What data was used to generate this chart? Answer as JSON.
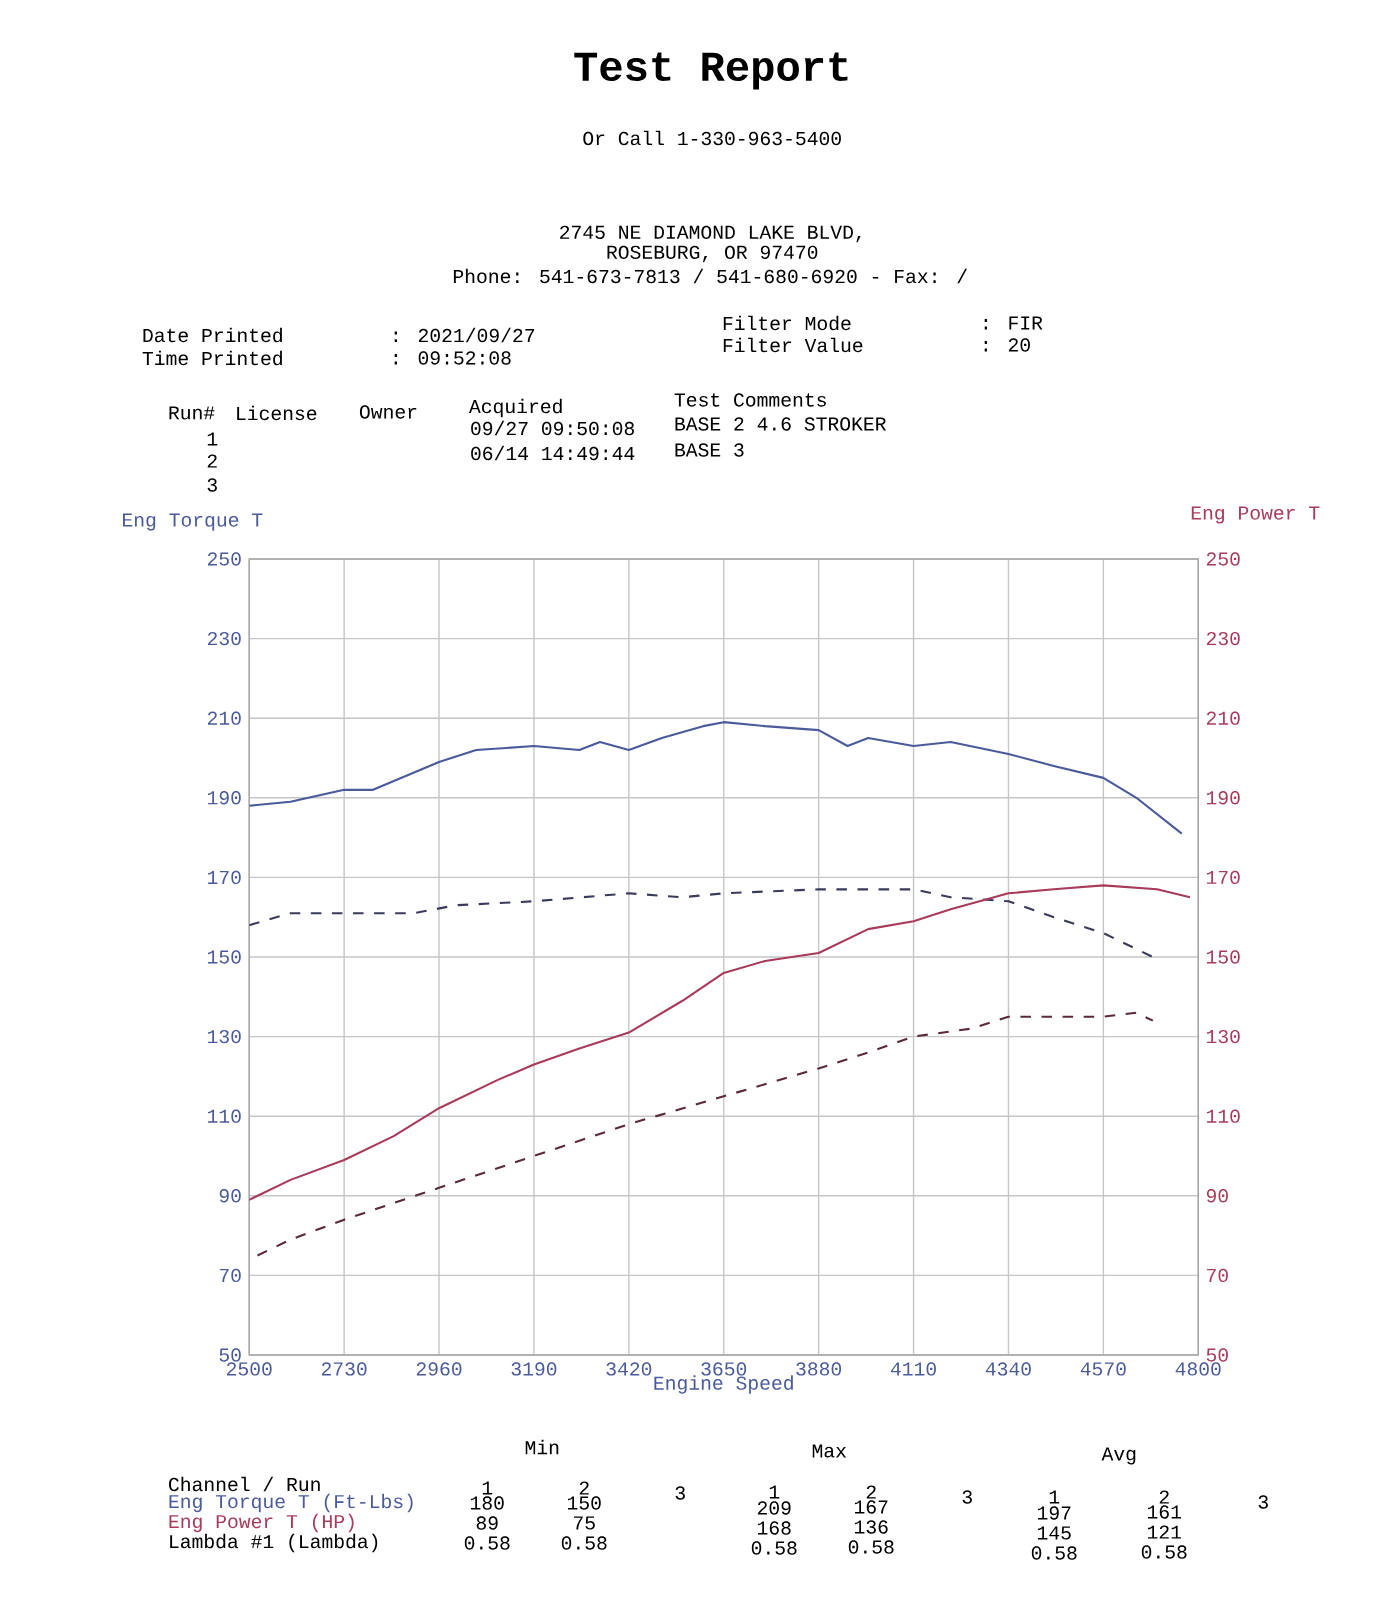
{
  "chart_data": {
    "type": "line",
    "title": "Test Report",
    "xlabel": "Engine Speed",
    "ylabel": "Eng Torque T",
    "y2label": "Eng Power T",
    "xlim": [
      2500,
      4800
    ],
    "xticks": [
      2500,
      2730,
      2960,
      3190,
      3420,
      3650,
      3880,
      4110,
      4340,
      4570,
      4800
    ],
    "ylim": [
      50,
      250
    ],
    "yticks": [
      50,
      70,
      90,
      110,
      130,
      150,
      170,
      190,
      210,
      230,
      250
    ],
    "y2lim": [
      50,
      250
    ],
    "y2ticks": [
      50,
      70,
      90,
      110,
      130,
      150,
      170,
      190,
      210,
      230,
      250
    ],
    "grid": true,
    "series": [
      {
        "color": "#4a5a9a",
        "line_style": "solid",
        "x": [
          2500,
          2600,
          2730,
          2800,
          2960,
          3050,
          3190,
          3300,
          3350,
          3420,
          3500,
          3600,
          3650,
          3750,
          3880,
          3950,
          4000,
          4110,
          4200,
          4340,
          4450,
          4570,
          4650,
          4760
        ],
        "values": [
          188,
          189,
          192,
          192,
          199,
          202,
          203,
          202,
          204,
          202,
          205,
          208,
          209,
          208,
          207,
          203,
          205,
          203,
          204,
          201,
          198,
          195,
          190,
          181
        ]
      },
      {
        "color": "#3a3a5a",
        "line_style": "dashed",
        "x": [
          2500,
          2600,
          2730,
          2900,
          3000,
          3190,
          3420,
          3550,
          3650,
          3880,
          4000,
          4110,
          4200,
          4340,
          4450,
          4570,
          4690
        ],
        "values": [
          158,
          161,
          161,
          161,
          163,
          164,
          166,
          165,
          166,
          167,
          167,
          167,
          165,
          164,
          160,
          156,
          150
        ]
      },
      {
        "color": "#a83a5a",
        "line_style": "solid",
        "axis": "y2",
        "x": [
          2500,
          2600,
          2730,
          2850,
          2960,
          3100,
          3190,
          3300,
          3420,
          3550,
          3650,
          3750,
          3880,
          4000,
          4110,
          4200,
          4340,
          4450,
          4570,
          4700,
          4780
        ],
        "values": [
          89,
          94,
          99,
          105,
          112,
          119,
          123,
          127,
          131,
          139,
          146,
          149,
          151,
          157,
          159,
          162,
          166,
          167,
          168,
          167,
          165
        ]
      },
      {
        "color": "#5a2a3a",
        "line_style": "dashed",
        "axis": "y2",
        "x": [
          2520,
          2600,
          2730,
          2960,
          3190,
          3420,
          3650,
          3880,
          4000,
          4110,
          4250,
          4340,
          4450,
          4570,
          4650,
          4690
        ],
        "values": [
          75,
          79,
          84,
          92,
          100,
          108,
          115,
          122,
          126,
          130,
          132,
          135,
          135,
          135,
          136,
          134
        ]
      }
    ],
    "annotations": [
      "Or Call 1-330-963-5400",
      "2745 NE DIAMOND LAKE BLVD,",
      "ROSEBURG, OR 97470",
      "Phone: 541-673-7813 / 541-680-6920 - Fax: /",
      "Date Printed",
      ": 2021/09/27",
      "Time Printed",
      ": 09:52:08",
      "Filter Mode",
      ": FIR",
      "Filter Value",
      ": 20",
      "Run#",
      "License",
      "Owner",
      "Acquired",
      "Test Comments",
      "1",
      "09/27 09:50:08",
      "BASE 2 4.6 STROKER",
      "2",
      "06/14 14:49:44",
      "BASE 3",
      "3",
      "Min",
      "Max",
      "Avg",
      "Channel / Run",
      "1",
      "2",
      "3",
      "1",
      "2",
      "3",
      "1",
      "2",
      "3",
      "Eng Torque T (Ft-Lbs)",
      "180",
      "150",
      "209",
      "167",
      "197",
      "161",
      "Eng Power T (HP)",
      "89",
      "75",
      "168",
      "136",
      "145",
      "121",
      "Lambda #1 (Lambda)",
      "0.58",
      "0.58",
      "0.58",
      "0.58",
      "0.58",
      "0.58"
    ]
  }
}
